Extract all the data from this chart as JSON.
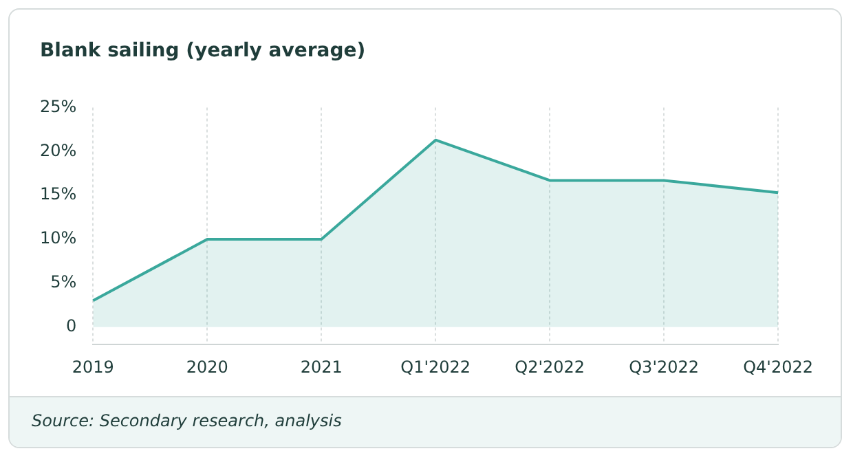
{
  "chart_data": {
    "type": "area",
    "title": "Blank sailing (yearly average)",
    "categories": [
      "2019",
      "2020",
      "2021",
      "Q1'2022",
      "Q2'2022",
      "Q3'2022",
      "Q4'2022"
    ],
    "series": [
      {
        "color": "#3aa89c",
        "values": [
          3,
          10,
          10,
          21.3,
          16.7,
          16.7,
          15.3
        ]
      }
    ],
    "ylim": [
      -2,
      25
    ],
    "yticks": [
      0,
      {
        "value": 5,
        "label": "5%"
      },
      {
        "value": 10,
        "label": "10%"
      },
      {
        "value": 15,
        "label": "15%"
      },
      {
        "value": 20,
        "label": "20%"
      },
      {
        "value": 25,
        "label": "25%"
      }
    ],
    "grid": "x",
    "legend": false,
    "annotations": [
      "Source: Secondary research, analysis"
    ]
  }
}
